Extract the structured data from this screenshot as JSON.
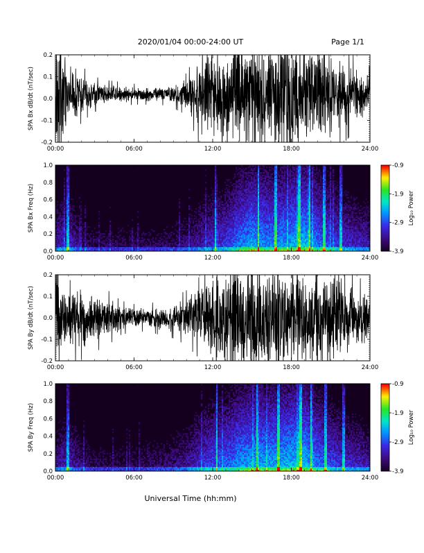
{
  "header": {
    "title": "2020/01/04  00:00-24:00 UT",
    "page": "Page 1/1"
  },
  "x_axis": {
    "title": "Universal Time (hh:mm)",
    "ticks": [
      "00:00",
      "06:00",
      "12:00",
      "18:00",
      "24:00"
    ],
    "range_hours": [
      0,
      24
    ]
  },
  "colorbar": {
    "label": "Log₁₀ Power",
    "ticks": [
      "-0.9",
      "-1.9",
      "-2.9",
      "-3.9"
    ],
    "range": [
      -3.9,
      -0.9
    ]
  },
  "chart_data": [
    {
      "type": "line",
      "ylabel": "SPA Bx dB/dt (nT/sec)",
      "ylim": [
        -0.2,
        0.2
      ],
      "yticks": [
        "0.2",
        "0.1",
        "0.0",
        "-0.1",
        "-0.2"
      ],
      "x_hours": [
        0,
        0.5,
        1,
        1.5,
        2,
        3,
        4,
        5,
        6,
        7,
        8,
        9,
        10,
        10.5,
        11,
        12,
        13,
        14,
        15,
        16,
        17,
        18,
        19,
        20,
        21,
        22,
        23,
        24
      ],
      "envelope_amplitude": [
        0.25,
        0.25,
        0.06,
        0.12,
        0.08,
        0.05,
        0.04,
        0.035,
        0.03,
        0.03,
        0.03,
        0.04,
        0.06,
        0.1,
        0.15,
        0.18,
        0.19,
        0.2,
        0.2,
        0.2,
        0.22,
        0.25,
        0.22,
        0.2,
        0.18,
        0.14,
        0.1,
        0.08
      ],
      "baseline": 0.02
    },
    {
      "type": "heatmap",
      "ylabel": "SPA Bx Freq (Hz)",
      "ylim": [
        0.0,
        1.0
      ],
      "yticks": [
        "1.0",
        "0.8",
        "0.6",
        "0.4",
        "0.2",
        "0.0"
      ],
      "x_hours": [
        0,
        1,
        2,
        3,
        4,
        5,
        6,
        7,
        8,
        9,
        10,
        11,
        12,
        13,
        14,
        15,
        16,
        17,
        18,
        19,
        20,
        21,
        22,
        23,
        24
      ],
      "log_power_level": [
        -3.2,
        -3.0,
        -3.5,
        -3.6,
        -3.6,
        -3.6,
        -3.6,
        -3.6,
        -3.6,
        -3.5,
        -3.4,
        -3.2,
        -3.0,
        -2.9,
        -2.6,
        -2.4,
        -2.5,
        -2.5,
        -2.4,
        -2.3,
        -2.6,
        -2.8,
        -3.0,
        -3.1,
        -3.2
      ],
      "vertical_streak_hours": [
        0.9,
        1.0,
        12.2,
        15.5,
        16.8,
        18.6,
        19.4,
        20.5,
        21.8
      ]
    },
    {
      "type": "line",
      "ylabel": "SPA By dB/dt (nT/sec)",
      "ylim": [
        -0.2,
        0.2
      ],
      "yticks": [
        "0.2",
        "0.1",
        "0.0",
        "-0.1",
        "-0.2"
      ],
      "x_hours": [
        0,
        0.5,
        1,
        1.5,
        2,
        3,
        4,
        5,
        6,
        7,
        8,
        9,
        10,
        10.5,
        11,
        12,
        13,
        14,
        15,
        16,
        17,
        18,
        19,
        20,
        21,
        22,
        23,
        24
      ],
      "envelope_amplitude": [
        0.2,
        0.15,
        0.1,
        0.14,
        0.12,
        0.1,
        0.08,
        0.05,
        0.04,
        0.04,
        0.05,
        0.06,
        0.08,
        0.1,
        0.12,
        0.18,
        0.22,
        0.22,
        0.2,
        0.2,
        0.22,
        0.2,
        0.2,
        0.2,
        0.18,
        0.15,
        0.12,
        0.1
      ],
      "baseline": 0.0
    },
    {
      "type": "heatmap",
      "ylabel": "SPA By Freq (Hz)",
      "ylim": [
        0.0,
        1.0
      ],
      "yticks": [
        "1.0",
        "0.8",
        "0.6",
        "0.4",
        "0.2",
        "0.0"
      ],
      "x_hours": [
        0,
        1,
        2,
        3,
        4,
        5,
        6,
        7,
        8,
        9,
        10,
        11,
        12,
        13,
        14,
        15,
        16,
        17,
        18,
        19,
        20,
        21,
        22,
        23,
        24
      ],
      "log_power_level": [
        -3.3,
        -3.1,
        -3.4,
        -3.6,
        -3.6,
        -3.6,
        -3.6,
        -3.5,
        -3.5,
        -3.4,
        -3.3,
        -3.0,
        -2.8,
        -2.7,
        -2.5,
        -2.4,
        -2.4,
        -2.4,
        -2.3,
        -2.3,
        -2.6,
        -2.8,
        -3.0,
        -3.1,
        -3.2
      ],
      "vertical_streak_hours": [
        0.9,
        1.0,
        12.3,
        15.4,
        17.0,
        18.7,
        19.5,
        20.6,
        22.0
      ]
    }
  ]
}
